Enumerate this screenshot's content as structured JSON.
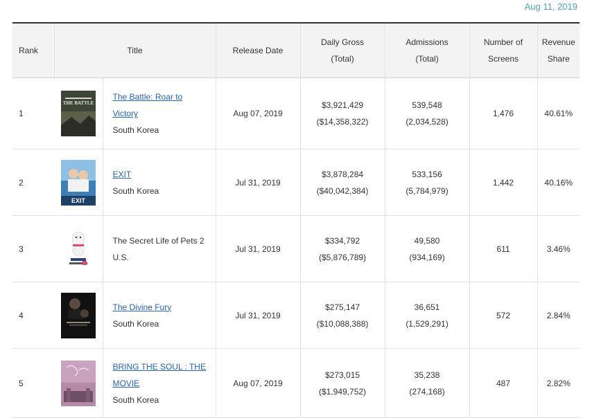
{
  "date": "Aug 11, 2019",
  "headers": {
    "rank": "Rank",
    "title": "Title",
    "release_date": "Release Date",
    "gross_line1": "Daily Gross",
    "gross_line2": "(Total)",
    "adm_line1": "Admissions",
    "adm_line2": "(Total)",
    "screens_line1": "Number of",
    "screens_line2": "Screens",
    "share_line1": "Revenue",
    "share_line2": "Share"
  },
  "rows": [
    {
      "rank": "1",
      "title_line1": "The Battle: Roar to",
      "title_line2": "Victory",
      "linked": true,
      "nation": "South Korea",
      "release": "Aug 07, 2019",
      "gross": "$3,921,429",
      "gross_total": "($14,358,322)",
      "admissions": "539,548",
      "admissions_total": "(2,034,528)",
      "screens": "1,476",
      "share": "40.61%",
      "poster_text": "THE BATTLE"
    },
    {
      "rank": "2",
      "title_line1": "EXIT",
      "title_line2": "",
      "linked": true,
      "nation": "South Korea",
      "release": "Jul 31, 2019",
      "gross": "$3,878,284",
      "gross_total": "($40,042,384)",
      "admissions": "533,156",
      "admissions_total": "(5,784,979)",
      "screens": "1,442",
      "share": "40.16%",
      "poster_text": "EXIT"
    },
    {
      "rank": "3",
      "title_line1": "The Secret Life of Pets 2",
      "title_line2": "",
      "linked": false,
      "nation": "U.S.",
      "release": "Jul 31, 2019",
      "gross": "$334,792",
      "gross_total": "($5,876,789)",
      "admissions": "49,580",
      "admissions_total": "(934,169)",
      "screens": "611",
      "share": "3.46%",
      "poster_text": ""
    },
    {
      "rank": "4",
      "title_line1": "The Divine Fury",
      "title_line2": "",
      "linked": true,
      "nation": "South Korea",
      "release": "Jul 31, 2019",
      "gross": "$275,147",
      "gross_total": "($10,088,388)",
      "admissions": "36,651",
      "admissions_total": "(1,529,291)",
      "screens": "572",
      "share": "2.84%",
      "poster_text": ""
    },
    {
      "rank": "5",
      "title_line1": "BRING THE SOUL : THE",
      "title_line2": "MOVIE",
      "linked": true,
      "nation": "South Korea",
      "release": "Aug 07, 2019",
      "gross": "$273,015",
      "gross_total": "($1,949,752)",
      "admissions": "35,238",
      "admissions_total": "(274,168)",
      "screens": "487",
      "share": "2.82%",
      "poster_text": ""
    }
  ]
}
